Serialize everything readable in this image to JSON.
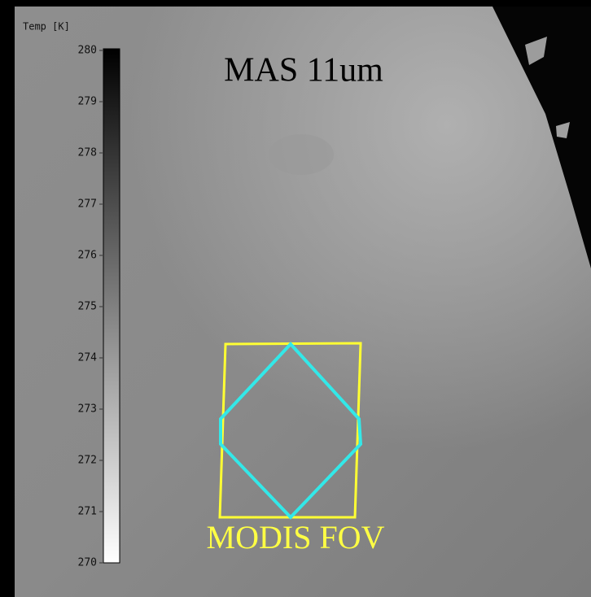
{
  "title": "MAS 11um",
  "colorbar": {
    "label": "Temp [K]",
    "lim": [
      270,
      280
    ],
    "ticks": [
      270,
      271,
      272,
      273,
      274,
      275,
      276,
      277,
      278,
      279,
      280
    ]
  },
  "annotation": "MODIS FOV"
}
